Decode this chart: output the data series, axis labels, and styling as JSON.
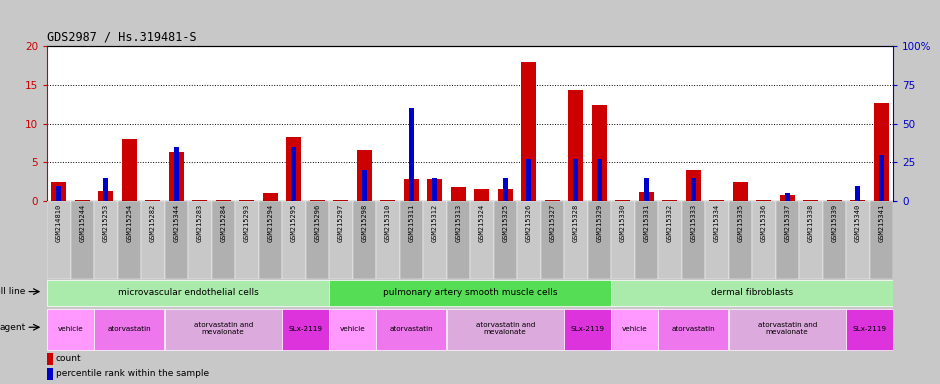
{
  "title": "GDS2987 / Hs.319481-S",
  "samples": [
    "GSM214810",
    "GSM215244",
    "GSM215253",
    "GSM215254",
    "GSM215282",
    "GSM215344",
    "GSM215283",
    "GSM215284",
    "GSM215293",
    "GSM215294",
    "GSM215295",
    "GSM215296",
    "GSM215297",
    "GSM215298",
    "GSM215310",
    "GSM215311",
    "GSM215312",
    "GSM215313",
    "GSM215324",
    "GSM215325",
    "GSM215326",
    "GSM215327",
    "GSM215328",
    "GSM215329",
    "GSM215330",
    "GSM215331",
    "GSM215332",
    "GSM215333",
    "GSM215334",
    "GSM215335",
    "GSM215336",
    "GSM215337",
    "GSM215338",
    "GSM215339",
    "GSM215340",
    "GSM215341"
  ],
  "counts": [
    2.4,
    0.1,
    1.3,
    8.0,
    0.1,
    6.3,
    0.1,
    0.1,
    0.1,
    1.0,
    8.3,
    0.1,
    0.1,
    6.6,
    0.1,
    2.9,
    2.9,
    1.8,
    1.6,
    1.5,
    18.0,
    0.1,
    14.3,
    12.4,
    0.1,
    1.1,
    0.1,
    4.0,
    0.1,
    2.4,
    0.1,
    0.8,
    0.1,
    0.1,
    0.1,
    12.7
  ],
  "percentiles": [
    10,
    0,
    15,
    0,
    0,
    35,
    0,
    0,
    0,
    0,
    35,
    0,
    0,
    20,
    0,
    60,
    15,
    0,
    0,
    15,
    27,
    0,
    27,
    27,
    0,
    15,
    0,
    15,
    0,
    0,
    0,
    5,
    0,
    0,
    10,
    30
  ],
  "ylim_left": [
    0,
    20
  ],
  "ylim_right": [
    0,
    100
  ],
  "yticks_left": [
    0,
    5,
    10,
    15,
    20
  ],
  "yticks_right": [
    0,
    25,
    50,
    75,
    100
  ],
  "bar_color_red": "#CC0000",
  "bar_color_blue": "#0000CC",
  "left_axis_color": "#CC0000",
  "right_axis_color": "#0000CC",
  "cell_lines": [
    {
      "label": "microvascular endothelial cells",
      "start": 0,
      "end": 12,
      "color": "#AAEAAA"
    },
    {
      "label": "pulmonary artery smooth muscle cells",
      "start": 12,
      "end": 24,
      "color": "#55DD55"
    },
    {
      "label": "dermal fibroblasts",
      "start": 24,
      "end": 36,
      "color": "#AAEAAA"
    }
  ],
  "agents": [
    {
      "label": "vehicle",
      "start": 0,
      "end": 2,
      "color": "#FF99FF"
    },
    {
      "label": "atorvastatin",
      "start": 2,
      "end": 5,
      "color": "#EE77EE"
    },
    {
      "label": "atorvastatin and\nmevalonate",
      "start": 5,
      "end": 10,
      "color": "#DDAADD"
    },
    {
      "label": "SLx-2119",
      "start": 10,
      "end": 12,
      "color": "#DD33DD"
    },
    {
      "label": "vehicle",
      "start": 12,
      "end": 14,
      "color": "#FF99FF"
    },
    {
      "label": "atorvastatin",
      "start": 14,
      "end": 17,
      "color": "#EE77EE"
    },
    {
      "label": "atorvastatin and\nmevalonate",
      "start": 17,
      "end": 22,
      "color": "#DDAADD"
    },
    {
      "label": "SLx-2119",
      "start": 22,
      "end": 24,
      "color": "#DD33DD"
    },
    {
      "label": "vehicle",
      "start": 24,
      "end": 26,
      "color": "#FF99FF"
    },
    {
      "label": "atorvastatin",
      "start": 26,
      "end": 29,
      "color": "#EE77EE"
    },
    {
      "label": "atorvastatin and\nmevalonate",
      "start": 29,
      "end": 34,
      "color": "#DDAADD"
    },
    {
      "label": "SLx-2119",
      "start": 34,
      "end": 36,
      "color": "#DD33DD"
    }
  ],
  "fig_bg": "#C8C8C8",
  "plot_bg": "#FFFFFF",
  "xtick_bg_odd": "#C8C8C8",
  "xtick_bg_even": "#B0B0B0"
}
